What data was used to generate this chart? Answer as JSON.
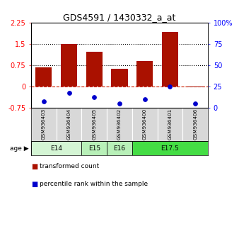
{
  "title": "GDS4591 / 1430332_a_at",
  "samples": [
    "GSM936403",
    "GSM936404",
    "GSM936405",
    "GSM936402",
    "GSM936400",
    "GSM936401",
    "GSM936406"
  ],
  "transformed_count": [
    0.68,
    1.5,
    1.22,
    0.63,
    0.9,
    1.92,
    -0.03
  ],
  "percentile_pct": [
    8,
    18,
    13,
    5,
    10,
    25,
    5
  ],
  "age_groups": [
    {
      "label": "E14",
      "start": 0,
      "end": 2,
      "color": "#d4f5d4"
    },
    {
      "label": "E15",
      "start": 2,
      "end": 3,
      "color": "#b8f0b8"
    },
    {
      "label": "E16",
      "start": 3,
      "end": 4,
      "color": "#b8f0b8"
    },
    {
      "label": "E17.5",
      "start": 4,
      "end": 7,
      "color": "#44dd44"
    }
  ],
  "ylim_left": [
    -0.75,
    2.25
  ],
  "ylim_right": [
    0,
    100
  ],
  "yticks_left": [
    -0.75,
    0,
    0.75,
    1.5,
    2.25
  ],
  "yticks_right": [
    0,
    25,
    50,
    75,
    100
  ],
  "hlines": [
    0.75,
    1.5
  ],
  "bar_color": "#aa1100",
  "dot_color": "#0000cc",
  "bg_color": "#ffffff",
  "dashed_line_color": "#cc2200",
  "title_fontsize": 9,
  "tick_fontsize": 7,
  "legend_fontsize": 6.5
}
